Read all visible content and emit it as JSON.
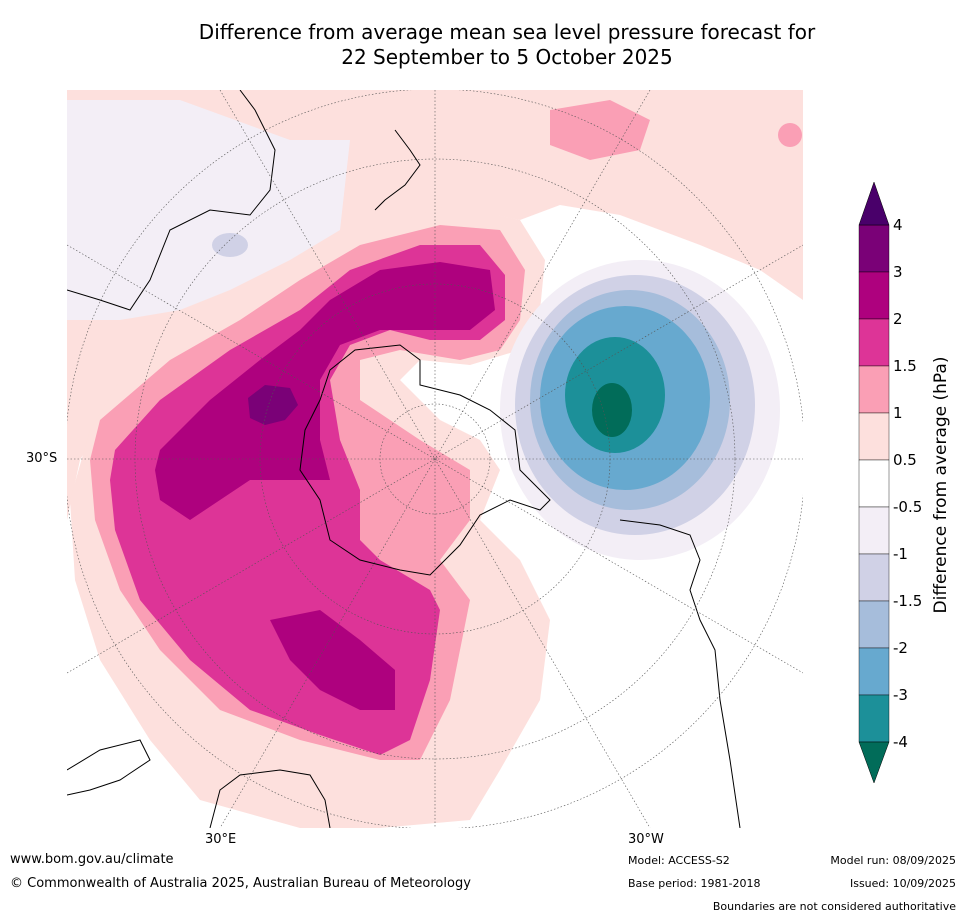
{
  "title": {
    "line1": "Difference from average mean sea level pressure forecast for",
    "line2": "22 September to 5 October 2025"
  },
  "map": {
    "lon_labels": [
      "30°E",
      "30°W"
    ],
    "lat_labels": [
      "30°S"
    ],
    "colors": {
      "land_outline": "#000000",
      "ocean": "#ffffff",
      "grid": "#555555"
    }
  },
  "colorbar": {
    "title": "Difference from average (hPa)",
    "tick_labels": [
      "4",
      "3",
      "2",
      "1.5",
      "1",
      "0.5",
      "-0.5",
      "-1",
      "-1.5",
      "-2",
      "-3",
      "-4"
    ],
    "bands": [
      {
        "range": "3 to 4",
        "color": "#7a0177"
      },
      {
        "range": "2 to 3",
        "color": "#ae017e"
      },
      {
        "range": "1.5 to 2",
        "color": "#dd3497"
      },
      {
        "range": "1 to 1.5",
        "color": "#fa9fb5"
      },
      {
        "range": "0.5 to 1",
        "color": "#fde0dd"
      },
      {
        "range": "-0.5 to 0.5",
        "color": "#ffffff"
      },
      {
        "range": "-1 to -0.5",
        "color": "#f3eef6"
      },
      {
        "range": "-1.5 to -1",
        "color": "#d0d1e6"
      },
      {
        "range": "-2 to -1.5",
        "color": "#a6bddb"
      },
      {
        "range": "-3 to -2",
        "color": "#67a9cf"
      },
      {
        "range": "-4 to -3",
        "color": "#1c9099"
      },
      {
        "range": "below -4",
        "color": "#016c59"
      },
      {
        "range": "above 4",
        "color": "#49006a"
      }
    ]
  },
  "footer": {
    "url": "www.bom.gov.au/climate",
    "copyright": "© Commonwealth of Australia 2025, Australian Bureau of Meteorology",
    "model": "Model: ACCESS-S2",
    "base_period": "Base period: 1981-2018",
    "model_run": "Model run: 08/09/2025",
    "issued": "Issued: 10/09/2025",
    "disclaimer": "Boundaries are not considered authoritative"
  }
}
